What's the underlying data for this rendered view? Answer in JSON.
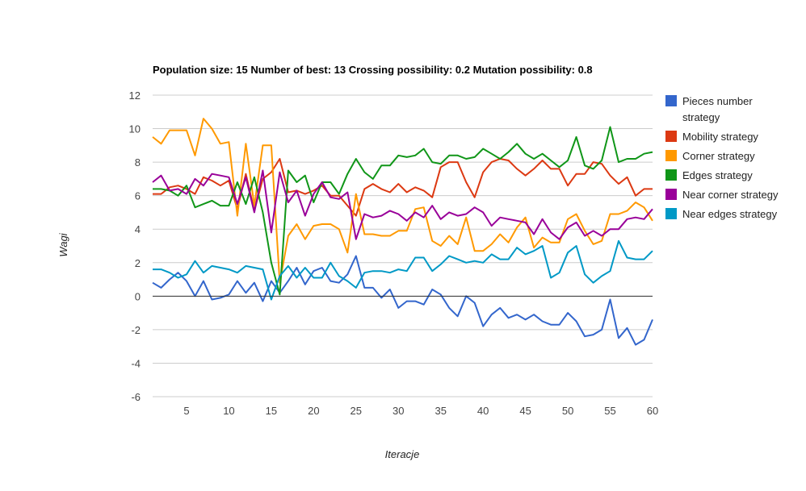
{
  "chart_data": {
    "type": "line",
    "title": "Population size: 15 Number of best: 13 Crossing possibility: 0.2 Mutation possibility: 0.8",
    "xlabel": "Iteracje",
    "ylabel": "Wagi",
    "xlim": [
      1,
      60
    ],
    "ylim": [
      -6,
      12
    ],
    "xticks": [
      5,
      10,
      15,
      20,
      25,
      30,
      35,
      40,
      45,
      50,
      55,
      60
    ],
    "yticks": [
      -6,
      -4,
      -2,
      0,
      2,
      4,
      6,
      8,
      10,
      12
    ],
    "grid": "horizontal",
    "legend": "right",
    "x": [
      1,
      2,
      3,
      4,
      5,
      6,
      7,
      8,
      9,
      10,
      11,
      12,
      13,
      14,
      15,
      16,
      17,
      18,
      19,
      20,
      21,
      22,
      23,
      24,
      25,
      26,
      27,
      28,
      29,
      30,
      31,
      32,
      33,
      34,
      35,
      36,
      37,
      38,
      39,
      40,
      41,
      42,
      43,
      44,
      45,
      46,
      47,
      48,
      49,
      50,
      51,
      52,
      53,
      54,
      55,
      56,
      57,
      58,
      59,
      60
    ],
    "series": [
      {
        "name": "Pieces number strategy",
        "color": "#3366cc",
        "values": [
          0.8,
          0.5,
          1.0,
          1.4,
          0.9,
          0.0,
          0.9,
          -0.2,
          -0.1,
          0.1,
          0.9,
          0.2,
          0.8,
          -0.3,
          0.9,
          0.2,
          0.9,
          1.7,
          0.7,
          1.5,
          1.7,
          0.9,
          0.8,
          1.3,
          2.4,
          0.5,
          0.5,
          -0.1,
          0.4,
          -0.7,
          -0.3,
          -0.3,
          -0.5,
          0.4,
          0.1,
          -0.7,
          -1.2,
          0.0,
          -0.4,
          -1.8,
          -1.1,
          -0.7,
          -1.3,
          -1.1,
          -1.4,
          -1.1,
          -1.5,
          -1.7,
          -1.7,
          -1.0,
          -1.5,
          -2.4,
          -2.3,
          -2.0,
          -0.2,
          -2.5,
          -1.9,
          -2.9,
          -2.6,
          -1.4
        ]
      },
      {
        "name": "Mobility strategy",
        "color": "#dc3912",
        "values": [
          6.1,
          6.1,
          6.5,
          6.6,
          6.4,
          6.1,
          7.1,
          6.9,
          6.6,
          6.9,
          5.2,
          7.3,
          5.1,
          7.0,
          7.4,
          8.2,
          6.2,
          6.3,
          6.1,
          6.3,
          6.6,
          6.0,
          6.0,
          5.4,
          4.8,
          6.4,
          6.7,
          6.4,
          6.2,
          6.7,
          6.2,
          6.5,
          6.3,
          5.9,
          7.7,
          8.0,
          8.0,
          6.8,
          5.9,
          7.4,
          8.0,
          8.2,
          8.1,
          7.6,
          7.2,
          7.6,
          8.1,
          7.6,
          7.6,
          6.6,
          7.3,
          7.3,
          8.0,
          7.9,
          7.2,
          6.7,
          7.1,
          6.0,
          6.4,
          6.4
        ]
      },
      {
        "name": "Corner strategy",
        "color": "#ff9900",
        "values": [
          9.5,
          9.1,
          9.9,
          9.9,
          9.9,
          8.4,
          10.6,
          10.0,
          9.1,
          9.2,
          4.8,
          9.1,
          5.4,
          9.0,
          9.0,
          0.8,
          3.6,
          4.3,
          3.4,
          4.2,
          4.3,
          4.3,
          4.0,
          2.6,
          6.1,
          3.7,
          3.7,
          3.6,
          3.6,
          3.9,
          3.9,
          5.2,
          5.3,
          3.3,
          3.0,
          3.6,
          3.1,
          4.7,
          2.7,
          2.7,
          3.1,
          3.7,
          3.2,
          4.1,
          4.7,
          2.9,
          3.5,
          3.2,
          3.2,
          4.6,
          4.9,
          3.9,
          3.1,
          3.3,
          4.9,
          4.9,
          5.1,
          5.6,
          5.3,
          4.5
        ]
      },
      {
        "name": "Edges strategy",
        "color": "#109618",
        "values": [
          6.4,
          6.4,
          6.3,
          6.0,
          6.6,
          5.3,
          5.5,
          5.7,
          5.4,
          5.4,
          6.8,
          5.5,
          7.1,
          5.0,
          2.0,
          0.1,
          7.5,
          6.8,
          7.2,
          5.6,
          6.8,
          6.8,
          6.1,
          7.3,
          8.2,
          7.4,
          7.0,
          7.8,
          7.8,
          8.4,
          8.3,
          8.4,
          8.8,
          8.0,
          7.9,
          8.4,
          8.4,
          8.2,
          8.3,
          8.8,
          8.5,
          8.2,
          8.6,
          9.1,
          8.5,
          8.2,
          8.5,
          8.1,
          7.7,
          8.1,
          9.5,
          7.8,
          7.6,
          8.1,
          10.1,
          8.0,
          8.2,
          8.2,
          8.5,
          8.6
        ]
      },
      {
        "name": "Near corner strategy",
        "color": "#990099",
        "values": [
          6.8,
          7.2,
          6.3,
          6.4,
          6.1,
          7.0,
          6.6,
          7.3,
          7.2,
          7.1,
          5.5,
          7.1,
          5.0,
          7.5,
          3.8,
          7.4,
          5.6,
          6.3,
          4.8,
          6.1,
          6.8,
          5.9,
          5.8,
          6.2,
          3.4,
          4.9,
          4.7,
          4.8,
          5.1,
          4.9,
          4.5,
          5.0,
          4.7,
          5.4,
          4.6,
          5.0,
          4.8,
          4.9,
          5.3,
          5.0,
          4.2,
          4.7,
          4.6,
          4.5,
          4.4,
          3.7,
          4.6,
          3.8,
          3.4,
          4.1,
          4.4,
          3.6,
          3.9,
          3.6,
          4.0,
          4.0,
          4.6,
          4.7,
          4.6,
          5.2
        ]
      },
      {
        "name": "Near edges strategy",
        "color": "#0099c6",
        "values": [
          1.6,
          1.6,
          1.4,
          1.1,
          1.3,
          2.1,
          1.4,
          1.8,
          1.7,
          1.6,
          1.4,
          1.8,
          1.7,
          1.6,
          -0.2,
          1.2,
          1.8,
          1.1,
          1.7,
          1.1,
          1.1,
          2.0,
          1.2,
          0.9,
          0.5,
          1.4,
          1.5,
          1.5,
          1.4,
          1.6,
          1.5,
          2.3,
          2.3,
          1.5,
          1.9,
          2.4,
          2.2,
          2.0,
          2.1,
          2.0,
          2.5,
          2.2,
          2.2,
          2.9,
          2.5,
          2.7,
          3.0,
          1.1,
          1.4,
          2.6,
          3.0,
          1.3,
          0.8,
          1.2,
          1.5,
          3.3,
          2.3,
          2.2,
          2.2,
          2.7
        ]
      }
    ]
  }
}
